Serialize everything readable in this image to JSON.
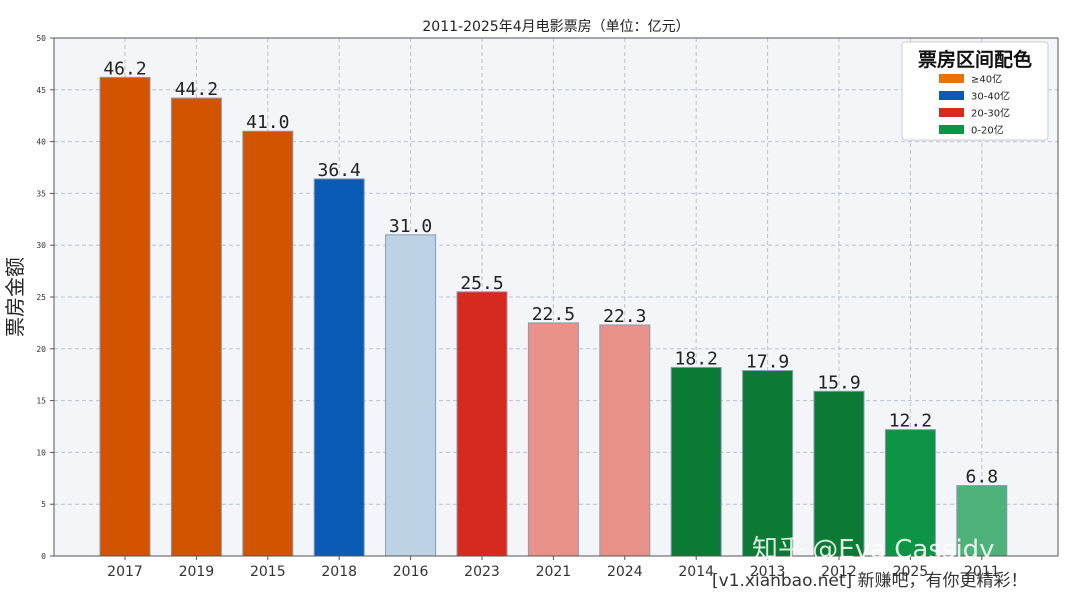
{
  "chart_data": {
    "type": "bar",
    "title": "2011-2025年4月电影票房（单位：亿元）",
    "ylabel": "票房金额",
    "xlabel": "",
    "ylim": [
      0,
      50
    ],
    "yticks": [
      0,
      5,
      10,
      15,
      20,
      25,
      30,
      35,
      40,
      45,
      50
    ],
    "grid": true,
    "categories": [
      "2017",
      "2019",
      "2015",
      "2018",
      "2016",
      "2023",
      "2021",
      "2024",
      "2014",
      "2013",
      "2012",
      "2025",
      "2011"
    ],
    "values": [
      46.2,
      44.2,
      41.0,
      36.4,
      31.0,
      25.5,
      22.5,
      22.3,
      18.2,
      17.9,
      15.9,
      12.2,
      6.8
    ],
    "value_labels": [
      "46.2",
      "44.2",
      "41.0",
      "36.4",
      "31.0",
      "25.5",
      "22.5",
      "22.3",
      "18.2",
      "17.9",
      "15.9",
      "12.2",
      "6.8"
    ],
    "bar_colors": [
      "#d35400",
      "#d35400",
      "#d35400",
      "#0a5bb5",
      "#bed2e6",
      "#d62a1e",
      "#e8928a",
      "#e8928a",
      "#0a7a34",
      "#0a7a34",
      "#0a7a34",
      "#0e9445",
      "#4fb27a"
    ],
    "legend": {
      "title": "票房区间配色",
      "placement": "top-right",
      "entries": [
        {
          "label": "≥40亿",
          "color": "#e6730e"
        },
        {
          "label": "30-40亿",
          "color": "#0a5bb5"
        },
        {
          "label": "20-30亿",
          "color": "#d62a1e"
        },
        {
          "label": "0-20亿",
          "color": "#0e9445"
        }
      ]
    }
  },
  "watermark": {
    "line1": "知乎 @Eva Cassidy",
    "line2": "[v1.xianbao.net] 新赚吧，有你更精彩！"
  }
}
